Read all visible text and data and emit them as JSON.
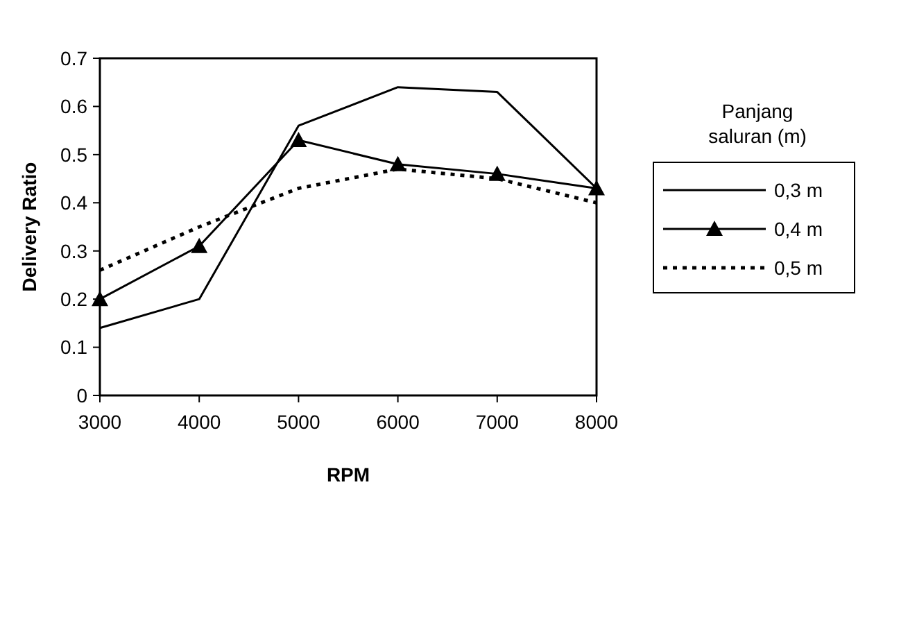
{
  "chart_data": {
    "type": "line",
    "xlabel": "RPM",
    "ylabel": "Delivery Ratio",
    "legend_title": "Panjang saluran (m)",
    "legend": "right",
    "grid": false,
    "x": [
      3000,
      4000,
      5000,
      6000,
      7000,
      8000
    ],
    "xlim": [
      3000,
      8000
    ],
    "xticks": [
      3000,
      4000,
      5000,
      6000,
      7000,
      8000
    ],
    "ylim": [
      0,
      0.7
    ],
    "yticks": [
      0,
      0.1,
      0.2,
      0.3,
      0.4,
      0.5,
      0.6,
      0.7
    ],
    "series": [
      {
        "name": "0,3 m",
        "color": "#000000",
        "line_style": "solid",
        "marker": "none",
        "values": [
          0.14,
          0.2,
          0.56,
          0.64,
          0.63,
          0.43
        ]
      },
      {
        "name": "0,4 m",
        "color": "#000000",
        "line_style": "solid",
        "marker": "triangle",
        "values": [
          0.2,
          0.31,
          0.53,
          0.48,
          0.46,
          0.43
        ]
      },
      {
        "name": "0,5 m",
        "color": "#000000",
        "line_style": "dotted",
        "marker": "none",
        "values": [
          0.26,
          0.35,
          0.43,
          0.47,
          0.45,
          0.4
        ]
      }
    ]
  }
}
